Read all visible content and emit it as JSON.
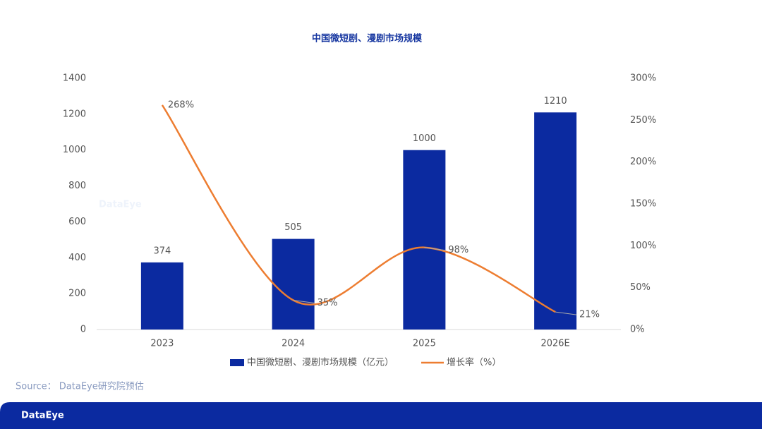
{
  "chart_data": {
    "type": "bar",
    "title": "中国微短剧、漫剧市场规模",
    "categories": [
      "2023",
      "2024",
      "2025",
      "2026E"
    ],
    "series": [
      {
        "name": "中国微短剧、漫剧市场规模（亿元）",
        "type": "bar",
        "color": "#0b2aa0",
        "values": [
          374,
          505,
          1000,
          1210
        ]
      },
      {
        "name": "增长率（%）",
        "type": "line",
        "axis": "y2",
        "color": "#ed7d31",
        "values": [
          268,
          35,
          98,
          21
        ],
        "value_labels": [
          "268%",
          "35%",
          "98%",
          "21%"
        ]
      }
    ],
    "ylim": [
      0,
      1400
    ],
    "yticks": [
      0,
      200,
      400,
      600,
      800,
      1000,
      1200,
      1400
    ],
    "y2lim": [
      0,
      300
    ],
    "y2ticks": [
      {
        "value": 0,
        "label": "0%"
      },
      {
        "value": 50,
        "label": "50%"
      },
      {
        "value": 100,
        "label": "100%"
      },
      {
        "value": 150,
        "label": "150%"
      },
      {
        "value": 200,
        "label": "200%"
      },
      {
        "value": 250,
        "label": "250%"
      },
      {
        "value": 300,
        "label": "300%"
      }
    ],
    "legend": "bottom"
  },
  "watermark": "DataEye",
  "source": "Source： DataEye研究院预估",
  "logo": "DataEye"
}
